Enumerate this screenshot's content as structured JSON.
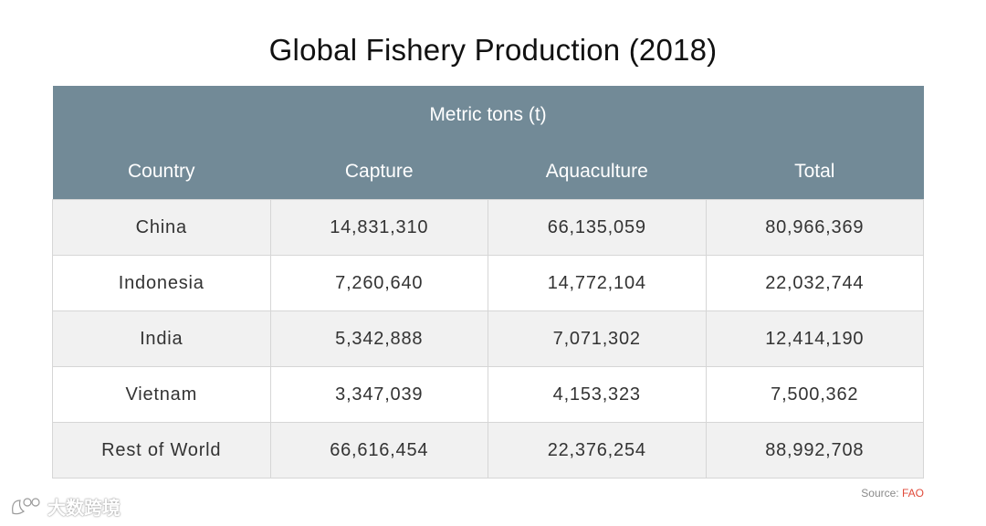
{
  "chart_data": {
    "type": "table",
    "title": "Global Fishery Production (2018)",
    "group_header": "Metric tons (t)",
    "columns": [
      "Country",
      "Capture",
      "Aquaculture",
      "Total"
    ],
    "rows": [
      [
        "China",
        "14,831,310",
        "66,135,059",
        "80,966,369"
      ],
      [
        "Indonesia",
        "7,260,640",
        "14,772,104",
        "22,032,744"
      ],
      [
        "India",
        "5,342,888",
        "7,071,302",
        "12,414,190"
      ],
      [
        "Vietnam",
        "3,347,039",
        "4,153,323",
        "7,500,362"
      ],
      [
        "Rest of World",
        "66,616,454",
        "22,376,254",
        "88,992,708"
      ]
    ],
    "source_label": "Source:",
    "source_name": "FAO"
  },
  "watermark": {
    "text": "大数跨境",
    "icon": "logo-icon"
  },
  "colors": {
    "header_bg": "#728a97",
    "row_alt_bg": "#f1f1f1",
    "source_accent": "#e04a3a"
  }
}
